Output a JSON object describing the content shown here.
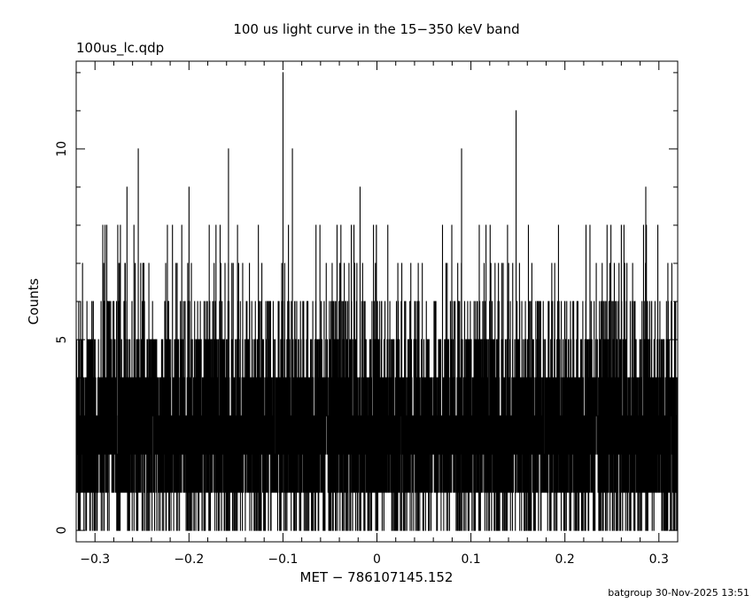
{
  "chart_data": {
    "type": "line",
    "title": "100 us light curve in the 15−350 keV band",
    "file_label": "100us_lc.qdp",
    "xlabel": "MET − 786107145.152",
    "ylabel": "Counts",
    "xlim": [
      -0.32,
      0.32
    ],
    "ylim": [
      -0.3,
      12.3
    ],
    "x_ticks": [
      {
        "value": -0.3,
        "label": "−0.3"
      },
      {
        "value": -0.2,
        "label": "−0.2"
      },
      {
        "value": -0.1,
        "label": "−0.1"
      },
      {
        "value": 0,
        "label": "0"
      },
      {
        "value": 0.1,
        "label": "0.1"
      },
      {
        "value": 0.2,
        "label": "0.2"
      },
      {
        "value": 0.3,
        "label": "0.3"
      }
    ],
    "y_ticks": [
      {
        "value": 0,
        "label": "0"
      },
      {
        "value": 5,
        "label": "5"
      },
      {
        "value": 10,
        "label": "10"
      }
    ],
    "bin_width_s": 0.0001,
    "typical_count_range": [
      1,
      5
    ],
    "mean_counts": 2.7,
    "peaks": [
      {
        "x": -0.254,
        "y": 10
      },
      {
        "x": -0.158,
        "y": 10
      },
      {
        "x": -0.1,
        "y": 12
      },
      {
        "x": -0.09,
        "y": 10
      },
      {
        "x": 0.09,
        "y": 10
      },
      {
        "x": 0.148,
        "y": 11
      },
      {
        "x": -0.266,
        "y": 9
      },
      {
        "x": -0.2,
        "y": 9
      },
      {
        "x": -0.018,
        "y": 9
      },
      {
        "x": 0.286,
        "y": 9
      }
    ],
    "grid": false,
    "line_color": "#000000"
  },
  "footer": "batgroup 30-Nov-2025 13:51"
}
